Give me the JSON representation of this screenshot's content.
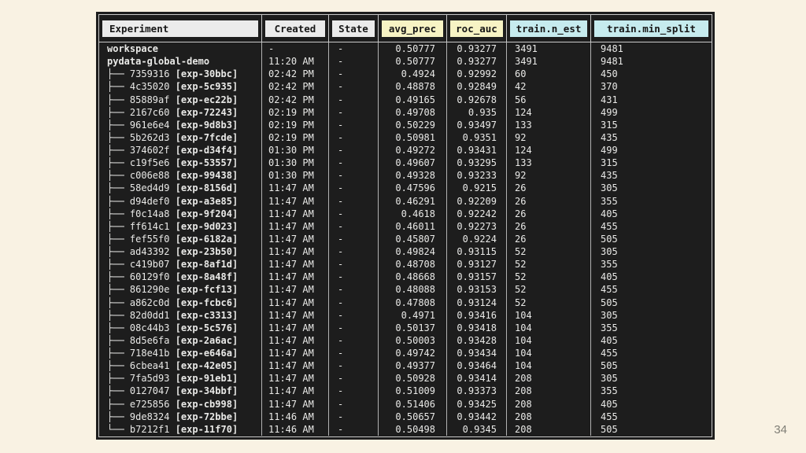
{
  "page": {
    "number": "34"
  },
  "colors": {
    "slide_background": "#f9f2e3",
    "terminal_background": "#1d1d1d",
    "terminal_text": "#e9e9e7",
    "frame_border": "#c9c9c9",
    "header_plain": "#ebebeb",
    "header_metric": "#f7f3c4",
    "header_param": "#c6ebee"
  },
  "table": {
    "columns": [
      {
        "label": "Experiment",
        "type": "plain"
      },
      {
        "label": "Created",
        "type": "plain"
      },
      {
        "label": "State",
        "type": "plain"
      },
      {
        "label": "avg_prec",
        "type": "metric"
      },
      {
        "label": "roc_auc",
        "type": "metric"
      },
      {
        "label": "train.n_est",
        "type": "param"
      },
      {
        "label": "train.min_split",
        "type": "param"
      }
    ],
    "rows": [
      {
        "prefix": "",
        "name": "workspace",
        "label": "",
        "created": "-",
        "state": "-",
        "avg_prec": "0.50777",
        "roc_auc": "0.93277",
        "n_est": "3491",
        "min_split": "9481"
      },
      {
        "prefix": "",
        "name": "pydata-global-demo",
        "label": "",
        "created": "11:20 AM",
        "state": "-",
        "avg_prec": "0.50777",
        "roc_auc": "0.93277",
        "n_est": "3491",
        "min_split": "9481"
      },
      {
        "prefix": "mid",
        "name": "7359316",
        "label": "exp-30bbc",
        "created": "02:42 PM",
        "state": "-",
        "avg_prec": "0.4924",
        "roc_auc": "0.92992",
        "n_est": "60",
        "min_split": "450"
      },
      {
        "prefix": "mid",
        "name": "4c35020",
        "label": "exp-5c935",
        "created": "02:42 PM",
        "state": "-",
        "avg_prec": "0.48878",
        "roc_auc": "0.92849",
        "n_est": "42",
        "min_split": "370"
      },
      {
        "prefix": "mid",
        "name": "85889af",
        "label": "exp-ec22b",
        "created": "02:42 PM",
        "state": "-",
        "avg_prec": "0.49165",
        "roc_auc": "0.92678",
        "n_est": "56",
        "min_split": "431"
      },
      {
        "prefix": "mid",
        "name": "2167c60",
        "label": "exp-72243",
        "created": "02:19 PM",
        "state": "-",
        "avg_prec": "0.49708",
        "roc_auc": "0.935",
        "n_est": "124",
        "min_split": "499"
      },
      {
        "prefix": "mid",
        "name": "961e6e4",
        "label": "exp-9d8b3",
        "created": "02:19 PM",
        "state": "-",
        "avg_prec": "0.50229",
        "roc_auc": "0.93497",
        "n_est": "133",
        "min_split": "315"
      },
      {
        "prefix": "mid",
        "name": "5b262d3",
        "label": "exp-7fcde",
        "created": "02:19 PM",
        "state": "-",
        "avg_prec": "0.50981",
        "roc_auc": "0.9351",
        "n_est": "92",
        "min_split": "435"
      },
      {
        "prefix": "mid",
        "name": "374602f",
        "label": "exp-d34f4",
        "created": "01:30 PM",
        "state": "-",
        "avg_prec": "0.49272",
        "roc_auc": "0.93431",
        "n_est": "124",
        "min_split": "499"
      },
      {
        "prefix": "mid",
        "name": "c19f5e6",
        "label": "exp-53557",
        "created": "01:30 PM",
        "state": "-",
        "avg_prec": "0.49607",
        "roc_auc": "0.93295",
        "n_est": "133",
        "min_split": "315"
      },
      {
        "prefix": "mid",
        "name": "c006e88",
        "label": "exp-99438",
        "created": "01:30 PM",
        "state": "-",
        "avg_prec": "0.49328",
        "roc_auc": "0.93233",
        "n_est": "92",
        "min_split": "435"
      },
      {
        "prefix": "mid",
        "name": "58ed4d9",
        "label": "exp-8156d",
        "created": "11:47 AM",
        "state": "-",
        "avg_prec": "0.47596",
        "roc_auc": "0.9215",
        "n_est": "26",
        "min_split": "305"
      },
      {
        "prefix": "mid",
        "name": "d94def0",
        "label": "exp-a3e85",
        "created": "11:47 AM",
        "state": "-",
        "avg_prec": "0.46291",
        "roc_auc": "0.92209",
        "n_est": "26",
        "min_split": "355"
      },
      {
        "prefix": "mid",
        "name": "f0c14a8",
        "label": "exp-9f204",
        "created": "11:47 AM",
        "state": "-",
        "avg_prec": "0.4618",
        "roc_auc": "0.92242",
        "n_est": "26",
        "min_split": "405"
      },
      {
        "prefix": "mid",
        "name": "ff614c1",
        "label": "exp-9d023",
        "created": "11:47 AM",
        "state": "-",
        "avg_prec": "0.46011",
        "roc_auc": "0.92273",
        "n_est": "26",
        "min_split": "455"
      },
      {
        "prefix": "mid",
        "name": "fef55f0",
        "label": "exp-6182a",
        "created": "11:47 AM",
        "state": "-",
        "avg_prec": "0.45807",
        "roc_auc": "0.9224",
        "n_est": "26",
        "min_split": "505"
      },
      {
        "prefix": "mid",
        "name": "ad43392",
        "label": "exp-23b50",
        "created": "11:47 AM",
        "state": "-",
        "avg_prec": "0.49824",
        "roc_auc": "0.93115",
        "n_est": "52",
        "min_split": "305"
      },
      {
        "prefix": "mid",
        "name": "c419b07",
        "label": "exp-8af1d",
        "created": "11:47 AM",
        "state": "-",
        "avg_prec": "0.48708",
        "roc_auc": "0.93127",
        "n_est": "52",
        "min_split": "355"
      },
      {
        "prefix": "mid",
        "name": "60129f0",
        "label": "exp-8a48f",
        "created": "11:47 AM",
        "state": "-",
        "avg_prec": "0.48668",
        "roc_auc": "0.93157",
        "n_est": "52",
        "min_split": "405"
      },
      {
        "prefix": "mid",
        "name": "861290e",
        "label": "exp-fcf13",
        "created": "11:47 AM",
        "state": "-",
        "avg_prec": "0.48088",
        "roc_auc": "0.93153",
        "n_est": "52",
        "min_split": "455"
      },
      {
        "prefix": "mid",
        "name": "a862c0d",
        "label": "exp-fcbc6",
        "created": "11:47 AM",
        "state": "-",
        "avg_prec": "0.47808",
        "roc_auc": "0.93124",
        "n_est": "52",
        "min_split": "505"
      },
      {
        "prefix": "mid",
        "name": "82d0dd1",
        "label": "exp-c3313",
        "created": "11:47 AM",
        "state": "-",
        "avg_prec": "0.4971",
        "roc_auc": "0.93416",
        "n_est": "104",
        "min_split": "305"
      },
      {
        "prefix": "mid",
        "name": "08c44b3",
        "label": "exp-5c576",
        "created": "11:47 AM",
        "state": "-",
        "avg_prec": "0.50137",
        "roc_auc": "0.93418",
        "n_est": "104",
        "min_split": "355"
      },
      {
        "prefix": "mid",
        "name": "8d5e6fa",
        "label": "exp-2a6ac",
        "created": "11:47 AM",
        "state": "-",
        "avg_prec": "0.50003",
        "roc_auc": "0.93428",
        "n_est": "104",
        "min_split": "405"
      },
      {
        "prefix": "mid",
        "name": "718e41b",
        "label": "exp-e646a",
        "created": "11:47 AM",
        "state": "-",
        "avg_prec": "0.49742",
        "roc_auc": "0.93434",
        "n_est": "104",
        "min_split": "455"
      },
      {
        "prefix": "mid",
        "name": "6cbea41",
        "label": "exp-42e05",
        "created": "11:47 AM",
        "state": "-",
        "avg_prec": "0.49377",
        "roc_auc": "0.93464",
        "n_est": "104",
        "min_split": "505"
      },
      {
        "prefix": "mid",
        "name": "7fa5d93",
        "label": "exp-91eb1",
        "created": "11:47 AM",
        "state": "-",
        "avg_prec": "0.50928",
        "roc_auc": "0.93414",
        "n_est": "208",
        "min_split": "305"
      },
      {
        "prefix": "mid",
        "name": "0127047",
        "label": "exp-34bbf",
        "created": "11:47 AM",
        "state": "-",
        "avg_prec": "0.51009",
        "roc_auc": "0.93373",
        "n_est": "208",
        "min_split": "355"
      },
      {
        "prefix": "mid",
        "name": "e725856",
        "label": "exp-cb998",
        "created": "11:47 AM",
        "state": "-",
        "avg_prec": "0.51406",
        "roc_auc": "0.93425",
        "n_est": "208",
        "min_split": "405"
      },
      {
        "prefix": "mid",
        "name": "9de8324",
        "label": "exp-72bbe",
        "created": "11:46 AM",
        "state": "-",
        "avg_prec": "0.50657",
        "roc_auc": "0.93442",
        "n_est": "208",
        "min_split": "455"
      },
      {
        "prefix": "last",
        "name": "b7212f1",
        "label": "exp-11f70",
        "created": "11:46 AM",
        "state": "-",
        "avg_prec": "0.50498",
        "roc_auc": "0.9345",
        "n_est": "208",
        "min_split": "505"
      }
    ]
  }
}
